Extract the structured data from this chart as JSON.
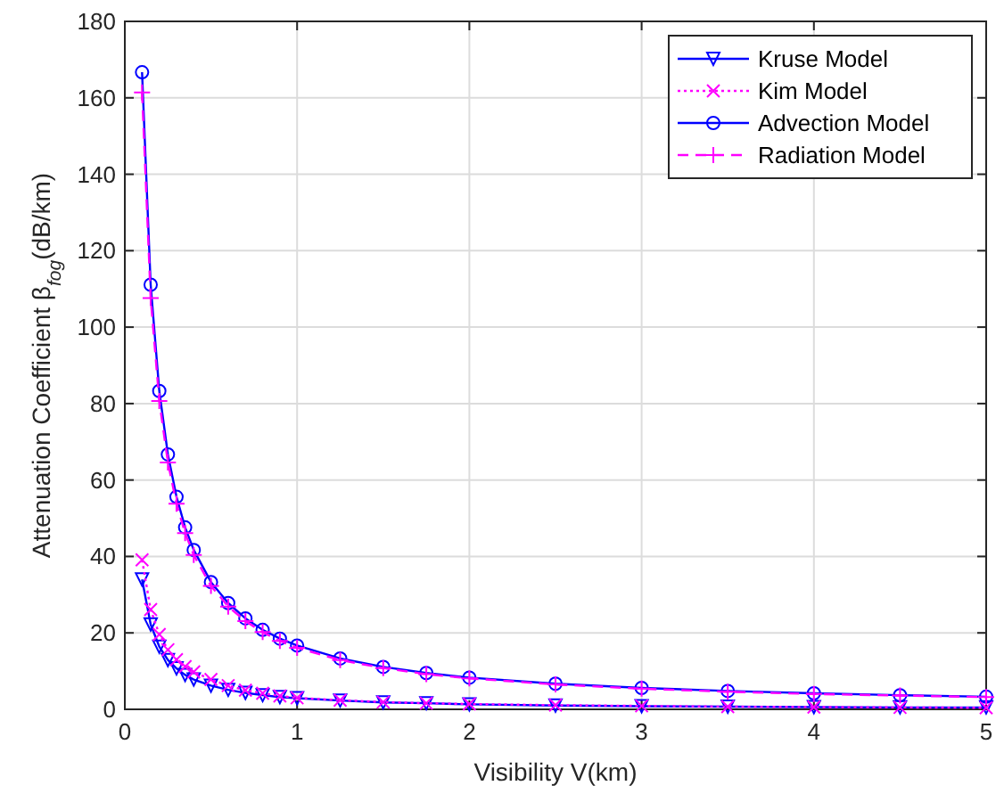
{
  "chart_data": {
    "type": "line",
    "xlabel": "Visibility V(km)",
    "ylabel": "Attenuation Coefficient β$_{fog}$(dB/km)",
    "x": [
      0.1,
      0.15,
      0.2,
      0.25,
      0.3,
      0.35,
      0.4,
      0.5,
      0.6,
      0.7,
      0.8,
      0.9,
      1,
      1.25,
      1.5,
      1.75,
      2,
      2.5,
      3,
      3.5,
      4,
      4.5,
      5
    ],
    "series": [
      {
        "name": "Kruse Model",
        "color": "#0000ff",
        "marker": "triangle",
        "line_style": "solid",
        "values": [
          34.0,
          22.2,
          16.4,
          12.9,
          10.7,
          9.0,
          7.8,
          6.2,
          5.1,
          4.3,
          3.7,
          3.2,
          2.9,
          2.3,
          1.8,
          1.6,
          1.3,
          1.0,
          0.8,
          0.7,
          0.6,
          0.5,
          0.5
        ]
      },
      {
        "name": "Kim Model",
        "color": "#ff00ff",
        "marker": "cross",
        "line_style": "dotted",
        "values": [
          39.1,
          26.1,
          19.6,
          15.6,
          13.0,
          11.2,
          9.8,
          7.8,
          6.2,
          5.0,
          4.2,
          3.5,
          3.0,
          2.4,
          1.9,
          1.6,
          1.4,
          1.1,
          0.9,
          0.7,
          0.6,
          0.5,
          0.4
        ]
      },
      {
        "name": "Advection Model",
        "color": "#0000ff",
        "marker": "circle",
        "line_style": "solid",
        "values": [
          166.7,
          111.1,
          83.3,
          66.7,
          55.6,
          47.6,
          41.7,
          33.3,
          27.8,
          23.8,
          20.8,
          18.5,
          16.7,
          13.3,
          11.1,
          9.5,
          8.3,
          6.7,
          5.6,
          4.8,
          4.2,
          3.7,
          3.3
        ]
      },
      {
        "name": "Radiation Model",
        "color": "#ff00ff",
        "marker": "plus",
        "line_style": "dashed",
        "values": [
          161.4,
          107.6,
          80.7,
          64.6,
          53.8,
          46.1,
          40.4,
          32.3,
          26.9,
          23.1,
          20.2,
          17.9,
          16.1,
          12.9,
          10.8,
          9.2,
          8.1,
          6.5,
          5.4,
          4.6,
          4.0,
          3.6,
          3.2
        ]
      }
    ],
    "xlim": [
      0,
      5
    ],
    "xticks": [
      0,
      1,
      2,
      3,
      4,
      5
    ],
    "ylim": [
      0,
      180
    ],
    "yticks": [
      0,
      20,
      40,
      60,
      80,
      100,
      120,
      140,
      160,
      180
    ],
    "grid": true,
    "legend": "top right"
  }
}
